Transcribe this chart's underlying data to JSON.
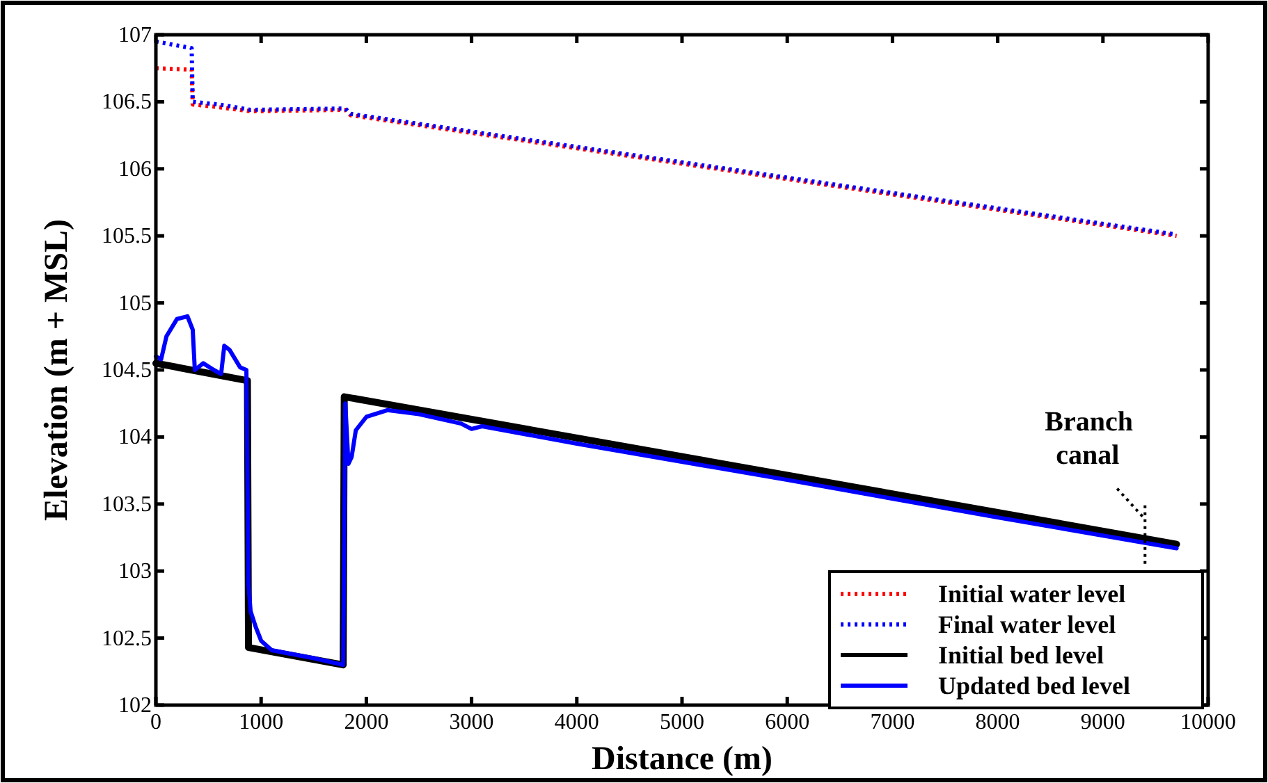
{
  "chart_data": {
    "type": "line",
    "xlabel": "Distance (m)",
    "ylabel": "Elevation (m + MSL)",
    "xlim": [
      0,
      10000
    ],
    "xticks": [
      0,
      1000,
      2000,
      3000,
      4000,
      5000,
      6000,
      7000,
      8000,
      9000,
      10000
    ],
    "ylim": [
      102,
      107
    ],
    "yticks": [
      102,
      102.5,
      103,
      103.5,
      104,
      104.5,
      105,
      105.5,
      106,
      106.5,
      107
    ],
    "grid": false,
    "legend": "bottom right",
    "annotations": [
      {
        "text": "Branch canal",
        "x": 9400,
        "y": 103.2
      }
    ],
    "series": [
      {
        "name": "Initial water level",
        "color": "#ff0000",
        "line_style": "dotted",
        "x": [
          0,
          340,
          350,
          600,
          900,
          1800,
          1850,
          9700
        ],
        "values": [
          106.75,
          106.74,
          106.48,
          106.46,
          106.43,
          106.44,
          106.4,
          105.5
        ]
      },
      {
        "name": "Final water level",
        "color": "#0000ff",
        "line_style": "dotted",
        "x": [
          0,
          340,
          350,
          600,
          900,
          1800,
          1850,
          9700
        ],
        "values": [
          106.95,
          106.9,
          106.5,
          106.48,
          106.44,
          106.45,
          106.41,
          105.51
        ]
      },
      {
        "name": "Initial bed level",
        "color": "#000000",
        "line_style": "solid",
        "x": [
          0,
          870,
          880,
          1780,
          1790,
          9700
        ],
        "values": [
          104.55,
          104.42,
          102.43,
          102.3,
          104.3,
          103.2
        ]
      },
      {
        "name": "Updated bed level",
        "color": "#0000ff",
        "line_style": "solid",
        "x": [
          0,
          50,
          100,
          200,
          300,
          350,
          370,
          450,
          550,
          620,
          650,
          700,
          800,
          860,
          880,
          900,
          950,
          1000,
          1100,
          1500,
          1780,
          1800,
          1830,
          1860,
          1900,
          2000,
          2200,
          2500,
          2900,
          3000,
          3100,
          4000,
          6000,
          8000,
          9700
        ],
        "values": [
          104.6,
          104.58,
          104.75,
          104.88,
          104.9,
          104.8,
          104.5,
          104.55,
          104.5,
          104.47,
          104.68,
          104.65,
          104.52,
          104.5,
          102.9,
          102.7,
          102.58,
          102.48,
          102.41,
          102.35,
          102.3,
          104.25,
          103.8,
          103.85,
          104.05,
          104.15,
          104.2,
          104.17,
          104.1,
          104.06,
          104.08,
          103.95,
          103.68,
          103.4,
          103.17
        ]
      }
    ]
  }
}
